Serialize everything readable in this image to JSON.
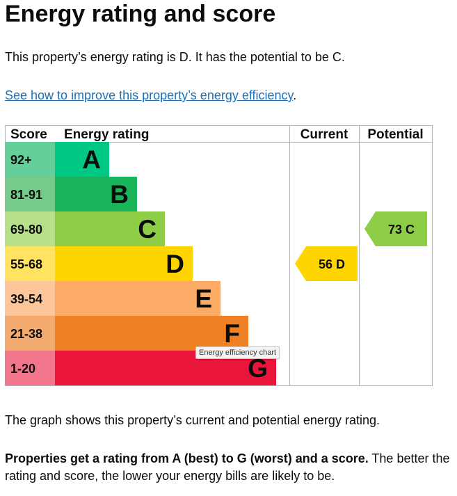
{
  "heading": "Energy rating and score",
  "intro": "This property’s energy rating is D. It has the potential to be C.",
  "improve_link": "See how to improve this property’s energy efficiency",
  "improve_suffix": ".",
  "caption": "The graph shows this property’s current and potential energy rating.",
  "explain_bold": "Properties get a rating from A (best) to G (worst) and a score.",
  "explain_rest": " The better the rating and score, the lower your energy bills are likely to be.",
  "tooltip": "Energy efficiency chart",
  "chart_data": {
    "type": "bar",
    "headers": {
      "score": "Score",
      "rating": "Energy rating",
      "current": "Current",
      "potential": "Potential"
    },
    "bands": [
      {
        "letter": "A",
        "range": "92+",
        "rank": 1,
        "color": "#00c781",
        "score_bg": "#64cf9b"
      },
      {
        "letter": "B",
        "range": "81-91",
        "rank": 2,
        "color": "#19b459",
        "score_bg": "#75cb8a"
      },
      {
        "letter": "C",
        "range": "69-80",
        "rank": 3,
        "color": "#8dce46",
        "score_bg": "#b7e08a"
      },
      {
        "letter": "D",
        "range": "55-68",
        "rank": 4,
        "color": "#ffd500",
        "score_bg": "#ffe361"
      },
      {
        "letter": "E",
        "range": "39-54",
        "rank": 5,
        "color": "#fcaa65",
        "score_bg": "#fdc69a"
      },
      {
        "letter": "F",
        "range": "21-38",
        "rank": 6,
        "color": "#ef8023",
        "score_bg": "#f4ab70"
      },
      {
        "letter": "G",
        "range": "1-20",
        "rank": 7,
        "color": "#e9153b",
        "score_bg": "#f2768b"
      }
    ],
    "current": {
      "score": 56,
      "letter": "D",
      "label": "56  D",
      "color": "#ffd500",
      "text_color": "#0b0c0c"
    },
    "potential": {
      "score": 73,
      "letter": "C",
      "label": "73  C",
      "color": "#8dce46",
      "text_color": "#0b0c0c"
    }
  }
}
